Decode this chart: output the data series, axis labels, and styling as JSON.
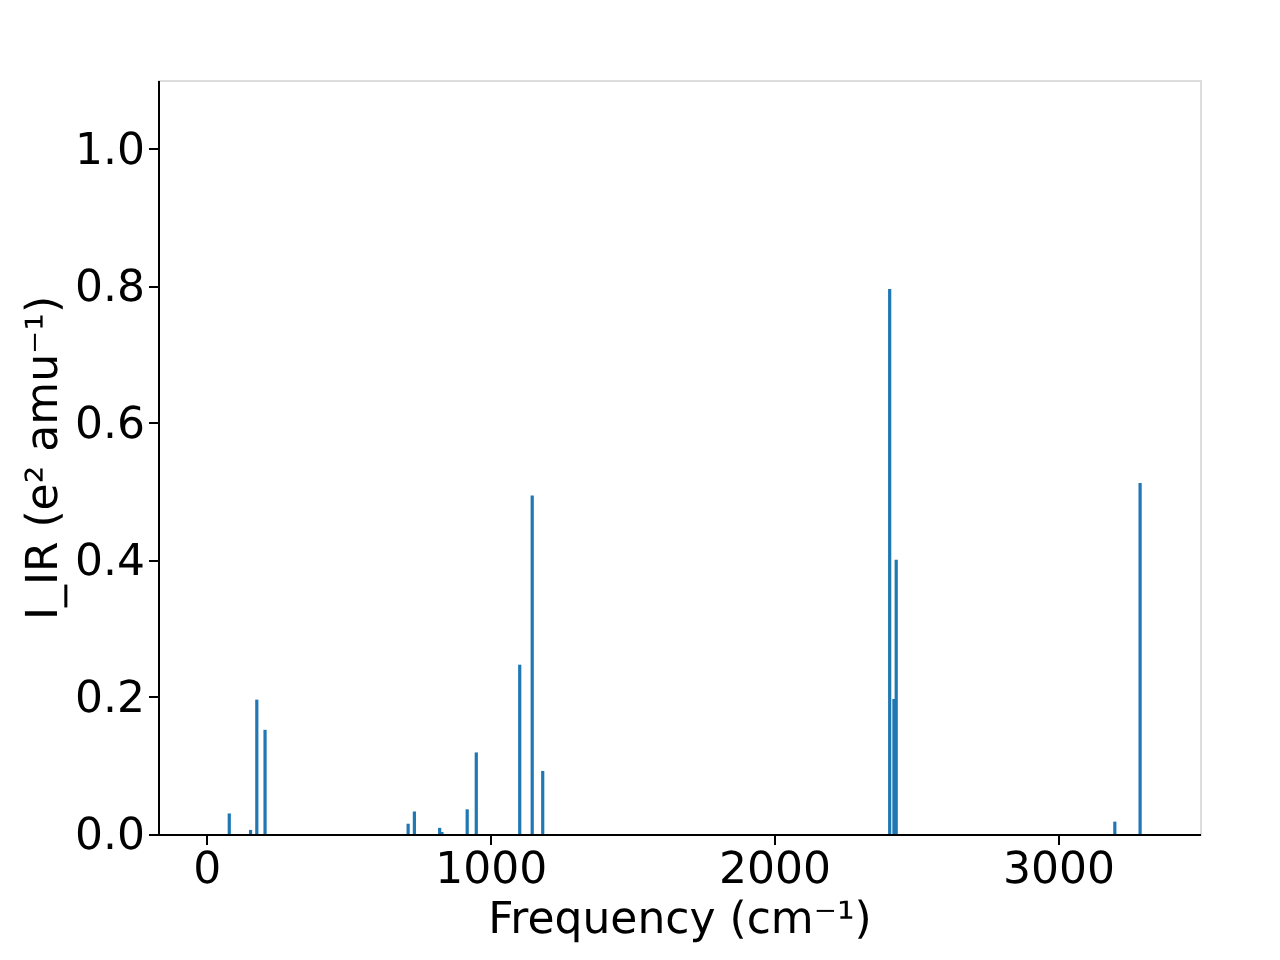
{
  "chart_data": {
    "type": "bar",
    "xlabel": "Frequency (cm⁻¹)",
    "ylabel": "I_IR (e² amu⁻¹)",
    "x": [
      81,
      156,
      178,
      207,
      711,
      733,
      822,
      830,
      919,
      951,
      1104,
      1148,
      1185,
      2407,
      2422,
      2430,
      3200,
      3289
    ],
    "series": [
      {
        "color": "#1f77b4",
        "values": [
          0.03,
          0.006,
          0.196,
          0.152,
          0.015,
          0.033,
          0.009,
          0.003,
          0.036,
          0.119,
          0.247,
          0.494,
          0.092,
          0.795,
          0.197,
          0.4,
          0.018,
          0.512
        ]
      }
    ],
    "xlim": [
      -170,
      3500
    ],
    "xticks": [
      0,
      1000,
      2000,
      3000
    ],
    "ylim": [
      0,
      1.1
    ],
    "yticks": [
      {
        "value": 0,
        "label": "0.0"
      },
      0.2,
      0.4,
      0.6,
      0.8,
      {
        "value": 1,
        "label": "1.0"
      }
    ],
    "grid": false,
    "legend": false
  }
}
